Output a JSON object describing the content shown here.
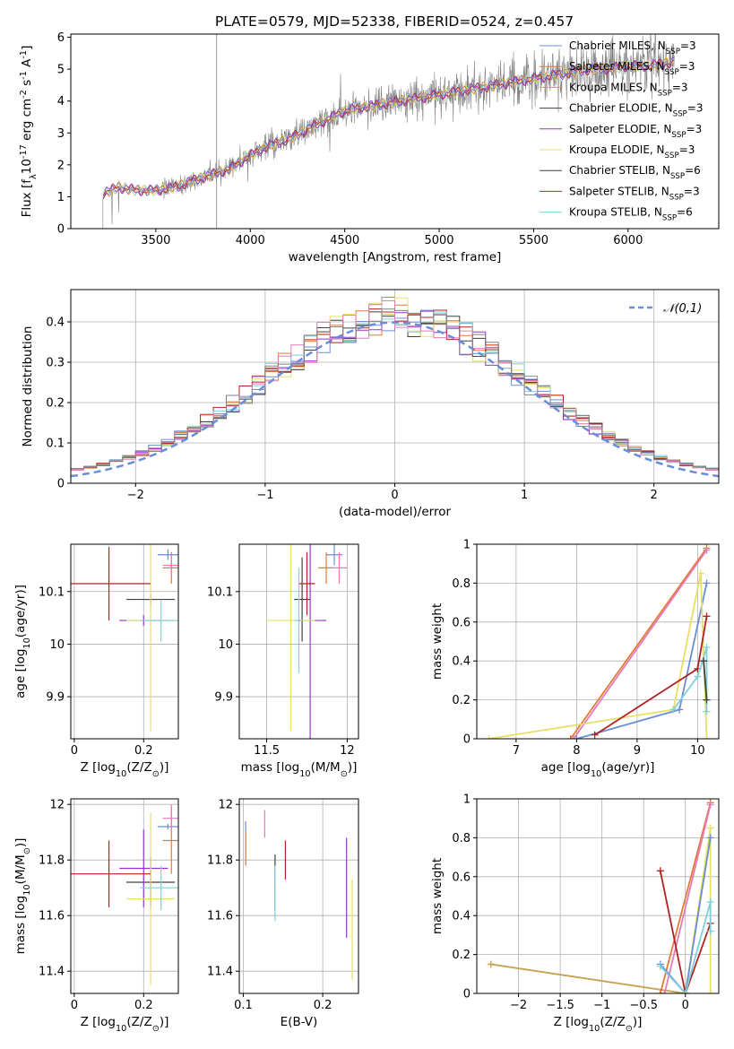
{
  "figure_title": "PLATE=0579, MJD=52338, FIBERID=0524, z=0.457",
  "palette": {
    "blue": "#6a8ed6",
    "orange": "#e07b39",
    "tan": "#c8a05a",
    "black": "#404040",
    "purple": "#9932cc",
    "yellow": "#e6e066",
    "gray": "#808080",
    "red": "#b22222",
    "cyan": "#7fd0d8",
    "pink": "#e87ab8",
    "grid": "#b0b0b0"
  },
  "chart_data": [
    {
      "id": "spectrum",
      "type": "line",
      "xlabel": "wavelength [Angstrom, rest frame]",
      "ylabel": "Flux [f$_\\lambda$10$^{-17}$ erg cm$^{-2}$ s$^{-1}$ A$^{-1}$]",
      "xlim": [
        3050,
        6480
      ],
      "ylim": [
        0,
        6.1
      ],
      "xticks": [
        3500,
        4000,
        4500,
        5000,
        5500,
        6000
      ],
      "yticks": [
        0,
        1,
        2,
        3,
        4,
        5,
        6
      ],
      "grid": false,
      "legend_position": "top-right",
      "legend": [
        {
          "label": "Chabrier MILES, N$_{SSP}$=3",
          "color": "#6a8ed6"
        },
        {
          "label": "Salpeter MILES, N$_{SSP}$=3",
          "color": "#e07b39"
        },
        {
          "label": "Kroupa MILES, N$_{SSP}$=3",
          "color": "#c8a05a"
        },
        {
          "label": "Chabrier ELODIE, N$_{SSP}$=3",
          "color": "#404040"
        },
        {
          "label": "Salpeter ELODIE, N$_{SSP}$=3",
          "color": "#9932cc"
        },
        {
          "label": "Kroupa ELODIE, N$_{SSP}$=3",
          "color": "#e6e066"
        },
        {
          "label": "Chabrier STELIB, N$_{SSP}$=6",
          "color": "#404040"
        },
        {
          "label": "Salpeter STELIB, N$_{SSP}$=3",
          "color": "#b22222"
        },
        {
          "label": "Kroupa STELIB, N$_{SSP}$=6",
          "color": "#7fd0d8"
        }
      ],
      "model_continuum": {
        "x": [
          3220,
          3300,
          3400,
          3500,
          3600,
          3700,
          3800,
          3900,
          4000,
          4100,
          4200,
          4300,
          4400,
          4500,
          4600,
          4700,
          4800,
          4900,
          5000,
          5100,
          5200,
          5300,
          5400,
          5500,
          5600,
          5700,
          5800,
          5900,
          6000,
          6100,
          6200,
          6250
        ],
        "y": [
          1.1,
          1.3,
          1.2,
          1.2,
          1.3,
          1.5,
          1.7,
          1.9,
          2.3,
          2.6,
          2.8,
          3.1,
          3.4,
          3.7,
          3.8,
          3.9,
          4.0,
          4.1,
          4.2,
          4.3,
          4.4,
          4.5,
          4.6,
          4.7,
          4.8,
          4.9,
          5.0,
          5.0,
          5.1,
          5.1,
          5.2,
          5.2
        ]
      },
      "data_noise_scale": "increasing toward red end"
    },
    {
      "id": "residuals",
      "type": "histogram",
      "xlabel": "(data-model)/error",
      "ylabel": "Normed distribution",
      "xlim": [
        -2.5,
        2.5
      ],
      "ylim": [
        0,
        0.48
      ],
      "xticks": [
        -2,
        -1,
        0,
        1,
        2
      ],
      "yticks": [
        0.0,
        0.1,
        0.2,
        0.3,
        0.4
      ],
      "grid": true,
      "legend_position": "top-right",
      "legend": [
        {
          "label": "$\\mathcal{N}(0,1)$",
          "style": "dashed",
          "color": "#6a8ed6"
        }
      ],
      "bin_width": 0.1
    },
    {
      "id": "age_vs_Z",
      "type": "errorbar",
      "xlabel": "Z [log$_{10}$(Z/Z$_\\odot$)]",
      "ylabel": "age  [log$_{10}$(age/yr)]",
      "xlim": [
        -0.01,
        0.3
      ],
      "ylim": [
        9.82,
        10.19
      ],
      "xticks": [
        0.0,
        0.2
      ],
      "yticks": [
        9.9,
        10.0,
        10.1
      ],
      "grid": true,
      "points": [
        {
          "x": 0.27,
          "y": 10.17,
          "xerr": 0.03,
          "yerr": 0.01,
          "color": "#6a8ed6"
        },
        {
          "x": 0.28,
          "y": 10.145,
          "xerr": 0.025,
          "yerr": 0.03,
          "color": "#e07b39"
        },
        {
          "x": 0.28,
          "y": 10.15,
          "xerr": 0.025,
          "yerr": 0.02,
          "color": "#e87ab8"
        },
        {
          "x": 0.22,
          "y": 10.085,
          "xerr": 0.07,
          "yerr": 0.01,
          "color": "#404040"
        },
        {
          "x": 0.2,
          "y": 10.045,
          "xerr": 0.07,
          "yerr": 0.01,
          "color": "#9932cc"
        },
        {
          "x": 0.22,
          "y": 10.045,
          "xerr": 0.07,
          "yerr": 0.21,
          "color": "#e6e066"
        },
        {
          "x": 0.1,
          "y": 10.115,
          "xerr": 0.12,
          "yerr": 0.07,
          "color": "#b22222"
        },
        {
          "x": 0.25,
          "y": 10.045,
          "xerr": 0.06,
          "yerr": 0.04,
          "color": "#7fd0d8"
        }
      ]
    },
    {
      "id": "age_vs_mass",
      "type": "errorbar",
      "xlabel": "mass [log$_{10}$(M/M$_\\odot$)]",
      "ylabel": "",
      "xlim": [
        11.33,
        12.07
      ],
      "ylim": [
        9.82,
        10.19
      ],
      "xticks": [
        11.5,
        12.0
      ],
      "yticks": [
        9.9,
        10.0,
        10.1
      ],
      "grid": true,
      "points": [
        {
          "x": 11.92,
          "y": 10.17,
          "xerr": 0.05,
          "yerr": 0.02,
          "color": "#6a8ed6"
        },
        {
          "x": 11.87,
          "y": 10.145,
          "xerr": 0.05,
          "yerr": 0.03,
          "color": "#e07b39"
        },
        {
          "x": 11.95,
          "y": 10.145,
          "xerr": 0.05,
          "yerr": 0.03,
          "color": "#e87ab8"
        },
        {
          "x": 11.72,
          "y": 10.085,
          "xerr": 0.05,
          "yerr": 0.08,
          "color": "#404040"
        },
        {
          "x": 11.77,
          "y": 10.045,
          "xerr": 0.1,
          "yerr": 0.25,
          "color": "#9932cc"
        },
        {
          "x": 11.65,
          "y": 10.045,
          "xerr": 0.15,
          "yerr": 0.21,
          "color": "#e6e066"
        },
        {
          "x": 11.75,
          "y": 10.115,
          "xerr": 0.05,
          "yerr": 0.06,
          "color": "#b22222"
        },
        {
          "x": 11.7,
          "y": 10.045,
          "xerr": 0.02,
          "yerr": 0.1,
          "color": "#7fd0d8"
        }
      ]
    },
    {
      "id": "weight_vs_age",
      "type": "line",
      "xlabel": "age  [log$_{10}$(age/yr)]",
      "ylabel": "mass weight",
      "xlim": [
        6.35,
        10.35
      ],
      "ylim": [
        0,
        1.0
      ],
      "xticks": [
        7,
        8,
        9,
        10
      ],
      "yticks": [
        0.0,
        0.2,
        0.4,
        0.6,
        0.8,
        1.0
      ],
      "grid": true,
      "series": [
        {
          "color": "#e07b39",
          "x": [
            7.9,
            10.15
          ],
          "y": [
            0.0,
            0.98
          ]
        },
        {
          "color": "#e87ab8",
          "x": [
            7.95,
            10.15
          ],
          "y": [
            0.0,
            0.97
          ]
        },
        {
          "color": "#6a8ed6",
          "x": [
            8.0,
            9.7,
            10.15
          ],
          "y": [
            0.0,
            0.15,
            0.8
          ]
        },
        {
          "color": "#e6e066",
          "x": [
            6.55,
            9.6,
            10.05,
            10.15
          ],
          "y": [
            0.0,
            0.15,
            0.85,
            0.0
          ]
        },
        {
          "color": "#b22222",
          "x": [
            8.3,
            10.0,
            10.15
          ],
          "y": [
            0.02,
            0.36,
            0.63
          ]
        },
        {
          "color": "#7fd0d8",
          "x": [
            9.6,
            10.0,
            10.15,
            10.15
          ],
          "y": [
            0.15,
            0.32,
            0.47,
            0.14
          ]
        },
        {
          "color": "#404040",
          "x": [
            10.1,
            10.15
          ],
          "y": [
            0.4,
            0.2
          ]
        }
      ]
    },
    {
      "id": "mass_vs_Z",
      "type": "errorbar",
      "xlabel": "Z [log$_{10}$(Z/Z$_\\odot$)]",
      "ylabel": "mass [log$_{10}$(M/M$_\\odot$)]",
      "xlim": [
        -0.01,
        0.3
      ],
      "ylim": [
        11.32,
        12.02
      ],
      "xticks": [
        0.0,
        0.2
      ],
      "yticks": [
        11.4,
        11.6,
        11.8,
        12.0
      ],
      "grid": true,
      "points": [
        {
          "x": 0.27,
          "y": 11.92,
          "xerr": 0.03,
          "yerr": 0.01,
          "color": "#6a8ed6"
        },
        {
          "x": 0.28,
          "y": 11.87,
          "xerr": 0.025,
          "yerr": 0.12,
          "color": "#e07b39"
        },
        {
          "x": 0.28,
          "y": 11.95,
          "xerr": 0.025,
          "yerr": 0.05,
          "color": "#e87ab8"
        },
        {
          "x": 0.22,
          "y": 11.72,
          "xerr": 0.07,
          "yerr": 0.09,
          "color": "#404040"
        },
        {
          "x": 0.2,
          "y": 11.77,
          "xerr": 0.07,
          "yerr": 0.14,
          "color": "#9932cc"
        },
        {
          "x": 0.22,
          "y": 11.66,
          "xerr": 0.07,
          "yerr": 0.31,
          "color": "#e6e066"
        },
        {
          "x": 0.1,
          "y": 11.75,
          "xerr": 0.12,
          "yerr": 0.12,
          "color": "#b22222"
        },
        {
          "x": 0.25,
          "y": 11.7,
          "xerr": 0.06,
          "yerr": 0.08,
          "color": "#7fd0d8"
        }
      ]
    },
    {
      "id": "mass_vs_ebv",
      "type": "errorbar",
      "xlabel": "E(B-V)",
      "ylabel": "",
      "xlim": [
        0.095,
        0.245
      ],
      "ylim": [
        11.32,
        12.02
      ],
      "xticks": [
        0.1,
        0.2
      ],
      "yticks": [
        11.4,
        11.6,
        11.8,
        12.0
      ],
      "grid": true,
      "points": [
        {
          "x": 0.103,
          "y": 11.86,
          "yerr": 0.08,
          "color": "#6a8ed6"
        },
        {
          "x": 0.103,
          "y": 11.84,
          "yerr": 0.06,
          "color": "#e07b39"
        },
        {
          "x": 0.127,
          "y": 11.93,
          "yerr": 0.05,
          "color": "#e87ab8"
        },
        {
          "x": 0.14,
          "y": 11.72,
          "yerr": 0.1,
          "color": "#404040"
        },
        {
          "x": 0.23,
          "y": 11.7,
          "yerr": 0.18,
          "color": "#9932cc"
        },
        {
          "x": 0.237,
          "y": 11.55,
          "yerr": 0.18,
          "color": "#e6e066"
        },
        {
          "x": 0.153,
          "y": 11.8,
          "yerr": 0.07,
          "color": "#b22222"
        },
        {
          "x": 0.14,
          "y": 11.68,
          "yerr": 0.1,
          "color": "#7fd0d8"
        }
      ]
    },
    {
      "id": "weight_vs_Z",
      "type": "line",
      "xlabel": "Z [log$_{10}$(Z/Z$_\\odot$)]",
      "ylabel": "mass weight",
      "xlim": [
        -2.5,
        0.4
      ],
      "ylim": [
        0,
        1.0
      ],
      "xticks": [
        -2.0,
        -1.5,
        -1.0,
        -0.5,
        0.0
      ],
      "yticks": [
        0.0,
        0.2,
        0.4,
        0.6,
        0.8,
        1.0
      ],
      "grid": true,
      "series": [
        {
          "color": "#e6e066",
          "x": [
            -2.33,
            0.0,
            0.3,
            0.3
          ],
          "y": [
            0.15,
            0.0,
            0.85,
            0.0
          ]
        },
        {
          "color": "#c8a05a",
          "x": [
            -2.33,
            0.0
          ],
          "y": [
            0.15,
            0.0
          ]
        },
        {
          "color": "#e07b39",
          "x": [
            -0.3,
            0.3
          ],
          "y": [
            0.0,
            0.98
          ]
        },
        {
          "color": "#e87ab8",
          "x": [
            -0.25,
            0.3
          ],
          "y": [
            0.0,
            0.97
          ]
        },
        {
          "color": "#6a8ed6",
          "x": [
            -0.3,
            0.0,
            0.3
          ],
          "y": [
            0.15,
            0.0,
            0.8
          ]
        },
        {
          "color": "#b22222",
          "x": [
            -0.3,
            0.0,
            0.3
          ],
          "y": [
            0.63,
            0.0,
            0.36
          ]
        },
        {
          "color": "#7fd0d8",
          "x": [
            -0.3,
            0.0,
            0.3,
            0.3
          ],
          "y": [
            0.14,
            0.0,
            0.47,
            0.32
          ]
        }
      ]
    }
  ]
}
